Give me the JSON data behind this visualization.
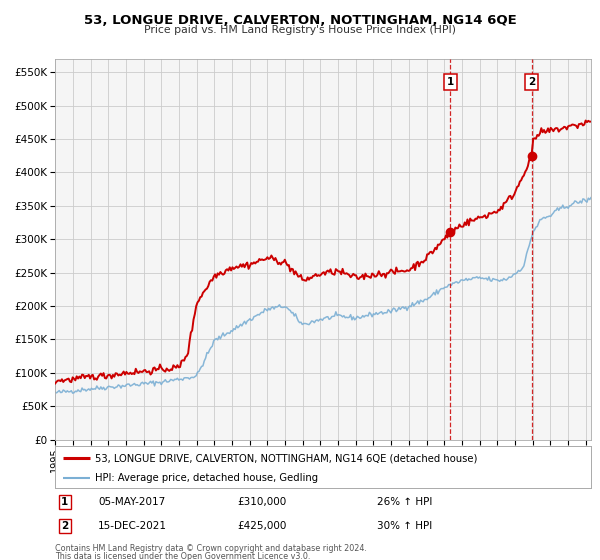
{
  "title": "53, LONGUE DRIVE, CALVERTON, NOTTINGHAM, NG14 6QE",
  "subtitle": "Price paid vs. HM Land Registry's House Price Index (HPI)",
  "ylabel_ticks": [
    "£0",
    "£50K",
    "£100K",
    "£150K",
    "£200K",
    "£250K",
    "£300K",
    "£350K",
    "£400K",
    "£450K",
    "£500K",
    "£550K"
  ],
  "ytick_values": [
    0,
    50000,
    100000,
    150000,
    200000,
    250000,
    300000,
    350000,
    400000,
    450000,
    500000,
    550000
  ],
  "ylim": [
    0,
    570000
  ],
  "xlim_start": 1995.0,
  "xlim_end": 2025.3,
  "xtick_years": [
    1995,
    1996,
    1997,
    1998,
    1999,
    2000,
    2001,
    2002,
    2003,
    2004,
    2005,
    2006,
    2007,
    2008,
    2009,
    2010,
    2011,
    2012,
    2013,
    2014,
    2015,
    2016,
    2017,
    2018,
    2019,
    2020,
    2021,
    2022,
    2023,
    2024,
    2025
  ],
  "property_color": "#cc0000",
  "hpi_color": "#7bafd4",
  "marker1_date": 2017.35,
  "marker1_price": 310000,
  "marker2_date": 2021.96,
  "marker2_price": 425000,
  "vline1_x": 2017.35,
  "vline2_x": 2021.96,
  "legend_property": "53, LONGUE DRIVE, CALVERTON, NOTTINGHAM, NG14 6QE (detached house)",
  "legend_hpi": "HPI: Average price, detached house, Gedling",
  "annotation1_date": "05-MAY-2017",
  "annotation1_price": "£310,000",
  "annotation1_hpi": "26% ↑ HPI",
  "annotation2_date": "15-DEC-2021",
  "annotation2_price": "£425,000",
  "annotation2_hpi": "30% ↑ HPI",
  "footer_line1": "Contains HM Land Registry data © Crown copyright and database right 2024.",
  "footer_line2": "This data is licensed under the Open Government Licence v3.0.",
  "bg_color": "#ffffff",
  "grid_color": "#cccccc",
  "plot_bg": "#f5f5f5"
}
